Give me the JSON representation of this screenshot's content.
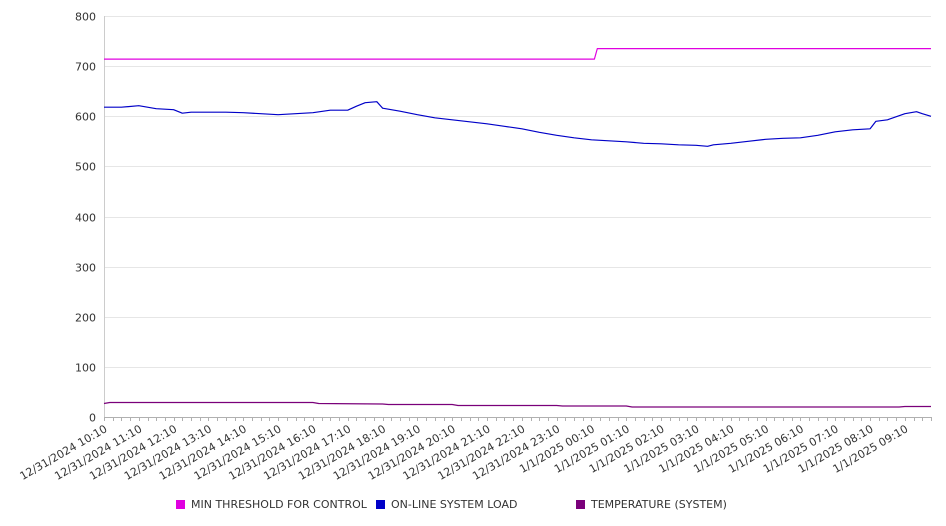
{
  "chart_data": {
    "type": "line",
    "title": "",
    "xlabel": "",
    "ylabel": "",
    "ylim": [
      0,
      800
    ],
    "yticks": [
      0,
      100,
      200,
      300,
      400,
      500,
      600,
      700,
      800
    ],
    "grid": "horizontal",
    "legend_position": "bottom",
    "x_tick_labels": [
      "12/31/2024 10:10",
      "12/31/2024 11:10",
      "12/31/2024 12:10",
      "12/31/2024 13:10",
      "12/31/2024 14:10",
      "12/31/2024 15:10",
      "12/31/2024 16:10",
      "12/31/2024 17:10",
      "12/31/2024 18:10",
      "12/31/2024 19:10",
      "12/31/2024 20:10",
      "12/31/2024 21:10",
      "12/31/2024 22:10",
      "12/31/2024 23:10",
      "1/1/2025 00:10",
      "1/1/2025 01:10",
      "1/1/2025 02:10",
      "1/1/2025 03:10",
      "1/1/2025 04:10",
      "1/1/2025 05:10",
      "1/1/2025 06:10",
      "1/1/2025 07:10",
      "1/1/2025 08:10",
      "1/1/2025 09:10"
    ],
    "x_range": [
      "12/31/2024 10:10",
      "1/1/2025 09:55"
    ],
    "series": [
      {
        "name": "MIN THRESHOLD FOR CONTROL",
        "color": "#e000e0",
        "points": [
          [
            "12/31/2024 10:10",
            714
          ],
          [
            "12/31/2024 14:10",
            714
          ],
          [
            "12/31/2024 18:10",
            714
          ],
          [
            "12/31/2024 22:10",
            714
          ],
          [
            "1/1/2025 00:10",
            714
          ],
          [
            "1/1/2025 00:15",
            714
          ],
          [
            "1/1/2025 00:20",
            735
          ],
          [
            "1/1/2025 04:10",
            735
          ],
          [
            "1/1/2025 08:10",
            735
          ],
          [
            "1/1/2025 09:55",
            735
          ]
        ]
      },
      {
        "name": "ON-LINE SYSTEM LOAD",
        "color": "#0000c8",
        "points": [
          [
            "12/31/2024 10:10",
            618
          ],
          [
            "12/31/2024 10:40",
            618
          ],
          [
            "12/31/2024 11:10",
            621
          ],
          [
            "12/31/2024 11:40",
            615
          ],
          [
            "12/31/2024 12:10",
            613
          ],
          [
            "12/31/2024 12:25",
            606
          ],
          [
            "12/31/2024 12:40",
            608
          ],
          [
            "12/31/2024 13:10",
            608
          ],
          [
            "12/31/2024 13:40",
            608
          ],
          [
            "12/31/2024 14:10",
            607
          ],
          [
            "12/31/2024 14:40",
            605
          ],
          [
            "12/31/2024 15:10",
            603
          ],
          [
            "12/31/2024 15:40",
            605
          ],
          [
            "12/31/2024 16:10",
            607
          ],
          [
            "12/31/2024 16:40",
            612
          ],
          [
            "12/31/2024 17:10",
            612
          ],
          [
            "12/31/2024 17:25",
            620
          ],
          [
            "12/31/2024 17:40",
            627
          ],
          [
            "12/31/2024 18:00",
            629
          ],
          [
            "12/31/2024 18:10",
            616
          ],
          [
            "12/31/2024 18:40",
            610
          ],
          [
            "12/31/2024 19:10",
            603
          ],
          [
            "12/31/2024 19:40",
            597
          ],
          [
            "12/31/2024 20:10",
            593
          ],
          [
            "12/31/2024 20:40",
            589
          ],
          [
            "12/31/2024 21:10",
            585
          ],
          [
            "12/31/2024 21:40",
            580
          ],
          [
            "12/31/2024 22:10",
            575
          ],
          [
            "12/31/2024 22:40",
            568
          ],
          [
            "12/31/2024 23:10",
            562
          ],
          [
            "12/31/2024 23:40",
            557
          ],
          [
            "1/1/2025 00:10",
            553
          ],
          [
            "1/1/2025 00:40",
            551
          ],
          [
            "1/1/2025 01:10",
            549
          ],
          [
            "1/1/2025 01:40",
            546
          ],
          [
            "1/1/2025 02:10",
            545
          ],
          [
            "1/1/2025 02:40",
            543
          ],
          [
            "1/1/2025 03:10",
            542
          ],
          [
            "1/1/2025 03:30",
            540
          ],
          [
            "1/1/2025 03:40",
            543
          ],
          [
            "1/1/2025 04:10",
            546
          ],
          [
            "1/1/2025 04:40",
            550
          ],
          [
            "1/1/2025 05:10",
            554
          ],
          [
            "1/1/2025 05:40",
            556
          ],
          [
            "1/1/2025 06:10",
            557
          ],
          [
            "1/1/2025 06:40",
            562
          ],
          [
            "1/1/2025 07:10",
            569
          ],
          [
            "1/1/2025 07:40",
            573
          ],
          [
            "1/1/2025 08:10",
            575
          ],
          [
            "1/1/2025 08:20",
            590
          ],
          [
            "1/1/2025 08:40",
            593
          ],
          [
            "1/1/2025 09:10",
            605
          ],
          [
            "1/1/2025 09:30",
            609
          ],
          [
            "1/1/2025 09:40",
            605
          ],
          [
            "1/1/2025 09:55",
            600
          ]
        ]
      },
      {
        "name": "TEMPERATURE (SYSTEM)",
        "color": "#7a007a",
        "points": [
          [
            "12/31/2024 10:10",
            27
          ],
          [
            "12/31/2024 10:20",
            29
          ],
          [
            "12/31/2024 12:10",
            29
          ],
          [
            "12/31/2024 14:10",
            29
          ],
          [
            "12/31/2024 16:10",
            29
          ],
          [
            "12/31/2024 16:20",
            27
          ],
          [
            "12/31/2024 18:10",
            26
          ],
          [
            "12/31/2024 18:20",
            25
          ],
          [
            "12/31/2024 20:10",
            25
          ],
          [
            "12/31/2024 20:20",
            23
          ],
          [
            "12/31/2024 23:10",
            23
          ],
          [
            "12/31/2024 23:20",
            22
          ],
          [
            "1/1/2025 01:10",
            22
          ],
          [
            "1/1/2025 01:20",
            20
          ],
          [
            "1/1/2025 09:00",
            20
          ],
          [
            "1/1/2025 09:10",
            21
          ],
          [
            "1/1/2025 09:55",
            21
          ]
        ]
      }
    ]
  }
}
